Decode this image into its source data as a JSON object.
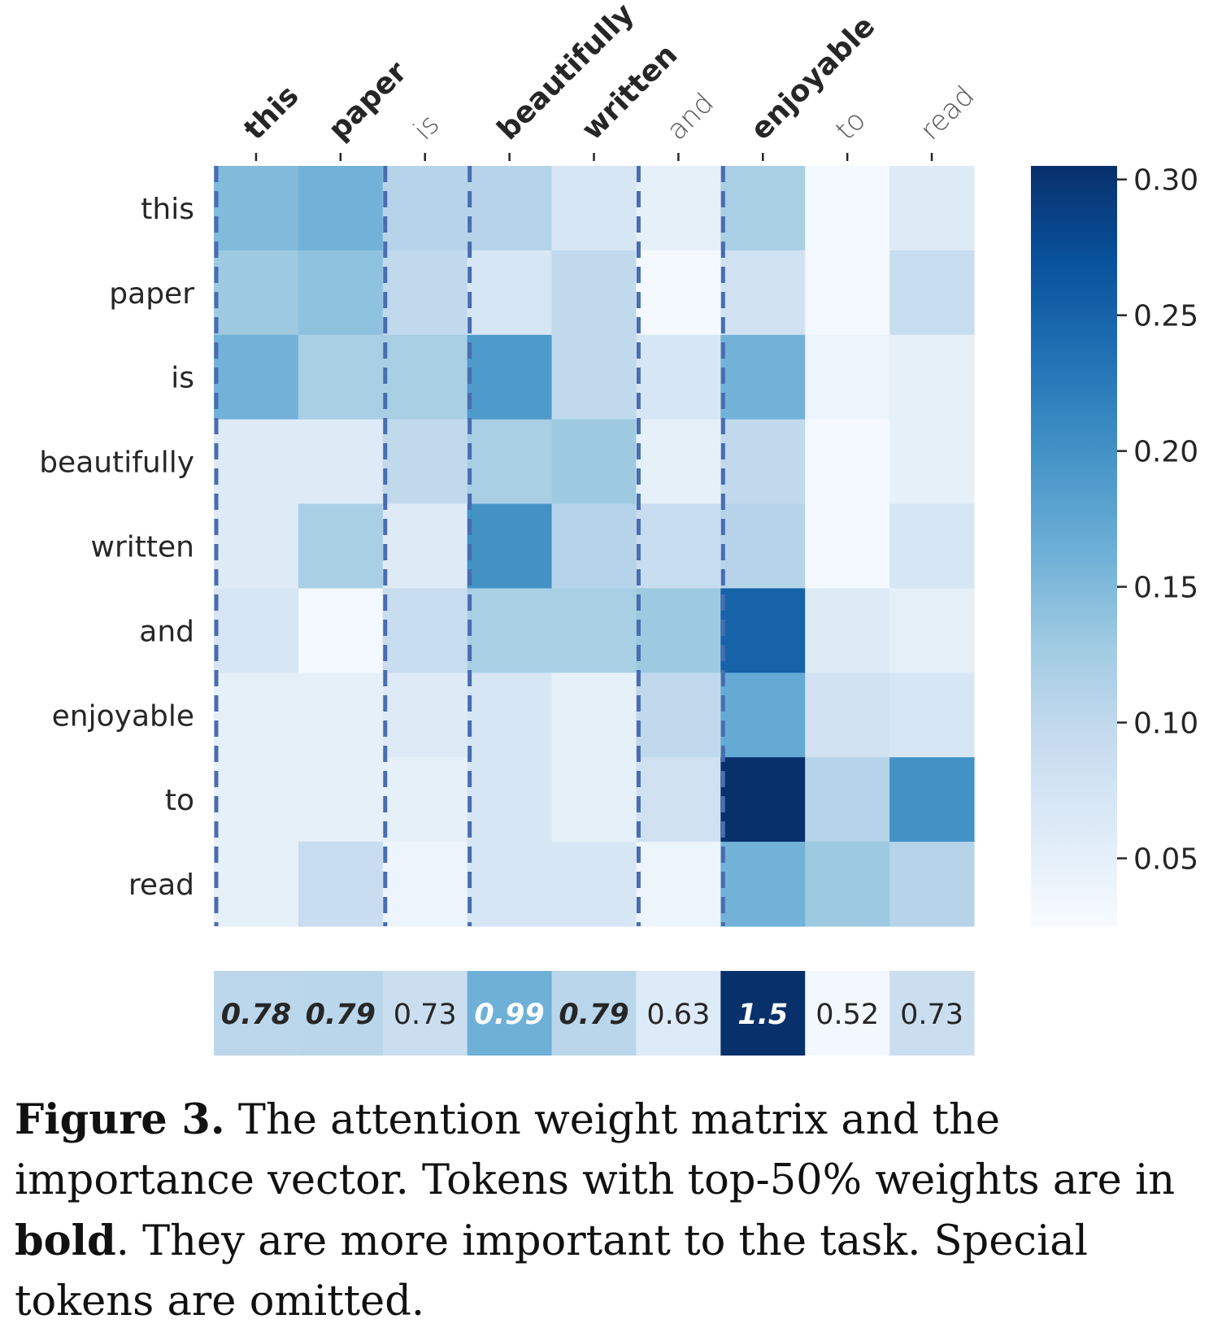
{
  "chart_data": [
    {
      "type": "heatmap",
      "x_tokens": [
        "this",
        "paper",
        "is",
        "beautifully",
        "written",
        "and",
        "enjoyable",
        "to",
        "read"
      ],
      "y_tokens": [
        "this",
        "paper",
        "is",
        "beautifully",
        "written",
        "and",
        "enjoyable",
        "to",
        "read"
      ],
      "bold_tokens": [
        "this",
        "paper",
        "beautifully",
        "written",
        "enjoyable"
      ],
      "values": [
        [
          0.15,
          0.16,
          0.11,
          0.11,
          0.07,
          0.05,
          0.12,
          0.03,
          0.06
        ],
        [
          0.13,
          0.14,
          0.1,
          0.07,
          0.1,
          0.03,
          0.08,
          0.03,
          0.09
        ],
        [
          0.16,
          0.12,
          0.12,
          0.19,
          0.1,
          0.07,
          0.16,
          0.04,
          0.05
        ],
        [
          0.06,
          0.06,
          0.1,
          0.12,
          0.13,
          0.05,
          0.1,
          0.03,
          0.05
        ],
        [
          0.06,
          0.12,
          0.06,
          0.2,
          0.11,
          0.09,
          0.11,
          0.03,
          0.07
        ],
        [
          0.07,
          0.03,
          0.09,
          0.12,
          0.12,
          0.13,
          0.25,
          0.06,
          0.05
        ],
        [
          0.05,
          0.05,
          0.06,
          0.07,
          0.05,
          0.1,
          0.17,
          0.08,
          0.07
        ],
        [
          0.05,
          0.05,
          0.05,
          0.07,
          0.05,
          0.08,
          0.31,
          0.11,
          0.2
        ],
        [
          0.05,
          0.09,
          0.04,
          0.07,
          0.07,
          0.04,
          0.16,
          0.13,
          0.11
        ]
      ],
      "dashed_columns": [
        "this",
        "is",
        "beautifully",
        "and",
        "enjoyable"
      ],
      "colormap": "Blues",
      "color_range": [
        0.025,
        0.305
      ],
      "colorbar_ticks": [
        "0.30",
        "0.25",
        "0.20",
        "0.15",
        "0.10",
        "0.05"
      ],
      "colorbar_tick_values": [
        0.3,
        0.25,
        0.2,
        0.15,
        0.1,
        0.05
      ]
    },
    {
      "type": "heatmap",
      "values": [
        0.78,
        0.79,
        0.73,
        0.99,
        0.79,
        0.63,
        1.5,
        0.52,
        0.73
      ],
      "labels": [
        "0.78",
        "0.79",
        "0.73",
        "0.99",
        "0.79",
        "0.63",
        "1.5",
        "0.52",
        "0.73"
      ],
      "label_bold": [
        true,
        true,
        false,
        true,
        true,
        false,
        true,
        false,
        false
      ],
      "color_range": [
        0.5,
        1.5
      ]
    }
  ],
  "caption": {
    "label": "Figure 3.",
    "text_1": " The attention weight matrix and the importance vector. Tokens with top-50% weights are in ",
    "bold_word": "bold",
    "text_2": ". They are more important to the task. Special tokens are omitted."
  }
}
